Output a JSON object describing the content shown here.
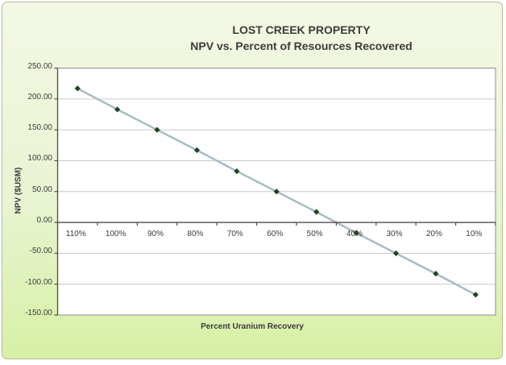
{
  "chart_data": {
    "type": "line",
    "title": "LOST CREEK PROPERTY",
    "subtitle": "NPV vs. Percent of Resources Recovered",
    "xlabel": "Percent Uranium Recovery",
    "ylabel": "NPV ($USM)",
    "categories": [
      "110%",
      "100%",
      "90%",
      "80%",
      "70%",
      "60%",
      "50%",
      "40%",
      "30%",
      "20%",
      "10%"
    ],
    "series": [
      {
        "name": "NPV",
        "values": [
          217,
          183,
          150,
          117,
          83,
          50,
          17,
          -17,
          -50,
          -83,
          -117
        ]
      }
    ],
    "ylim": [
      -150,
      250
    ],
    "y_tick_step": 50,
    "y_tick_labels": [
      "250.00",
      "200.00",
      "150.00",
      "100.00",
      "50.00",
      "0.00",
      "-50.00",
      "-100.00",
      "-150.00"
    ],
    "grid": true,
    "legend": "none",
    "marker_shape": "diamond",
    "colors": {
      "line": "#a9bdc6",
      "marker": "#1d4521",
      "gridline": "#c9c9c9",
      "plot_border": "#8c8c8c",
      "axis": "#4d4d4d",
      "text": "#3b3b3b",
      "plot_bg": "#ffffff",
      "bg_top": "#f3f8e4",
      "bg_bottom": "#d7f0a4",
      "frame_border": "#b2ba9b"
    }
  }
}
